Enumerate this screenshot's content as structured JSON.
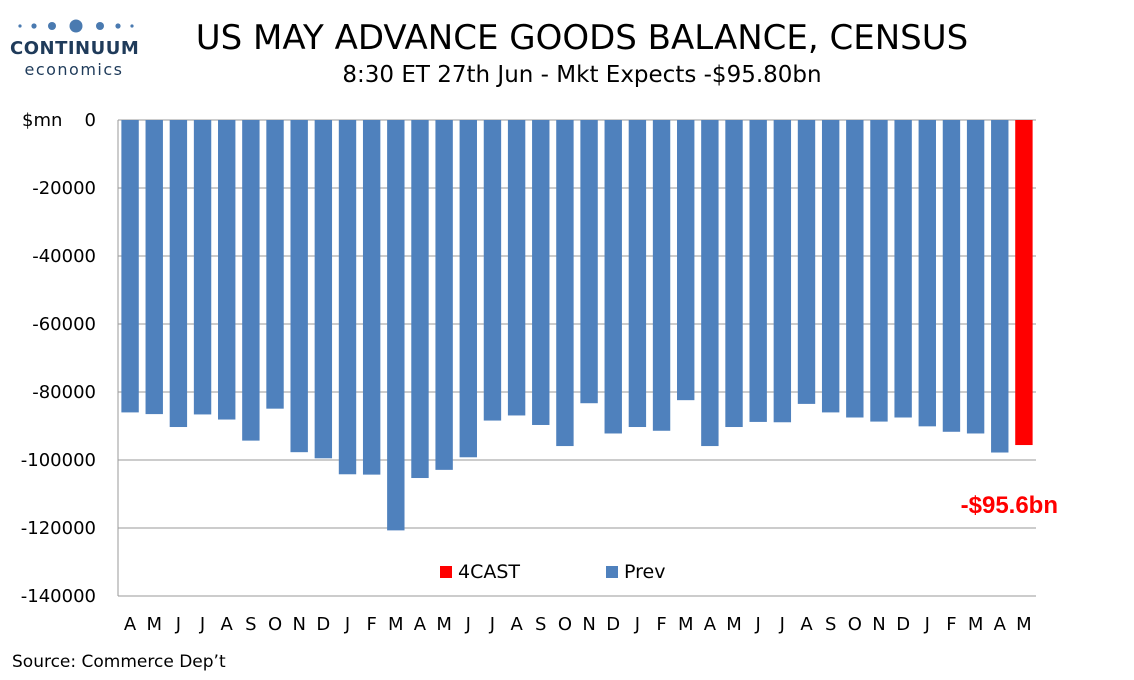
{
  "logo": {
    "word": "CONTINUUM",
    "sub": "economics",
    "color": "#1f3b5a"
  },
  "title": "US MAY ADVANCE GOODS BALANCE, CENSUS",
  "subtitle": "8:30 ET 27th Jun - Mkt Expects -$95.80bn",
  "source": "Source: Commerce Dep’t",
  "chart_data": {
    "type": "bar",
    "ylabel": "$mn",
    "ylim": [
      -140000,
      0
    ],
    "yticks": [
      0,
      -20000,
      -40000,
      -60000,
      -80000,
      -100000,
      -120000,
      -140000
    ],
    "grid": true,
    "legend_position": "bottom-center",
    "categories": [
      "A",
      "M",
      "J",
      "J",
      "A",
      "S",
      "O",
      "N",
      "D",
      "J",
      "F",
      "M",
      "A",
      "M",
      "J",
      "J",
      "A",
      "S",
      "O",
      "N",
      "D",
      "J",
      "F",
      "M",
      "A",
      "M",
      "J",
      "J",
      "A",
      "S",
      "O",
      "N",
      "D",
      "J",
      "F",
      "M",
      "A",
      "M"
    ],
    "series": [
      {
        "name": "Prev",
        "color": "#4f81bd",
        "values": [
          -86000,
          -86500,
          -90300,
          -86600,
          -88100,
          -94300,
          -84900,
          -97700,
          -99500,
          -104200,
          -104300,
          -120700,
          -105300,
          -102900,
          -99200,
          -88400,
          -86900,
          -89700,
          -95900,
          -83300,
          -92200,
          -90300,
          -91400,
          -82400,
          -95900,
          -90300,
          -88800,
          -88900,
          -83500,
          -86000,
          -87500,
          -88700,
          -87500,
          -90100,
          -91700,
          -92200,
          -97800,
          null
        ]
      },
      {
        "name": "4CAST",
        "color": "#ff0000",
        "values": [
          null,
          null,
          null,
          null,
          null,
          null,
          null,
          null,
          null,
          null,
          null,
          null,
          null,
          null,
          null,
          null,
          null,
          null,
          null,
          null,
          null,
          null,
          null,
          null,
          null,
          null,
          null,
          null,
          null,
          null,
          null,
          null,
          null,
          null,
          null,
          null,
          null,
          -95600
        ]
      }
    ],
    "annotations": [
      {
        "text": "-$95.6bn",
        "color": "#ff0000"
      }
    ]
  }
}
